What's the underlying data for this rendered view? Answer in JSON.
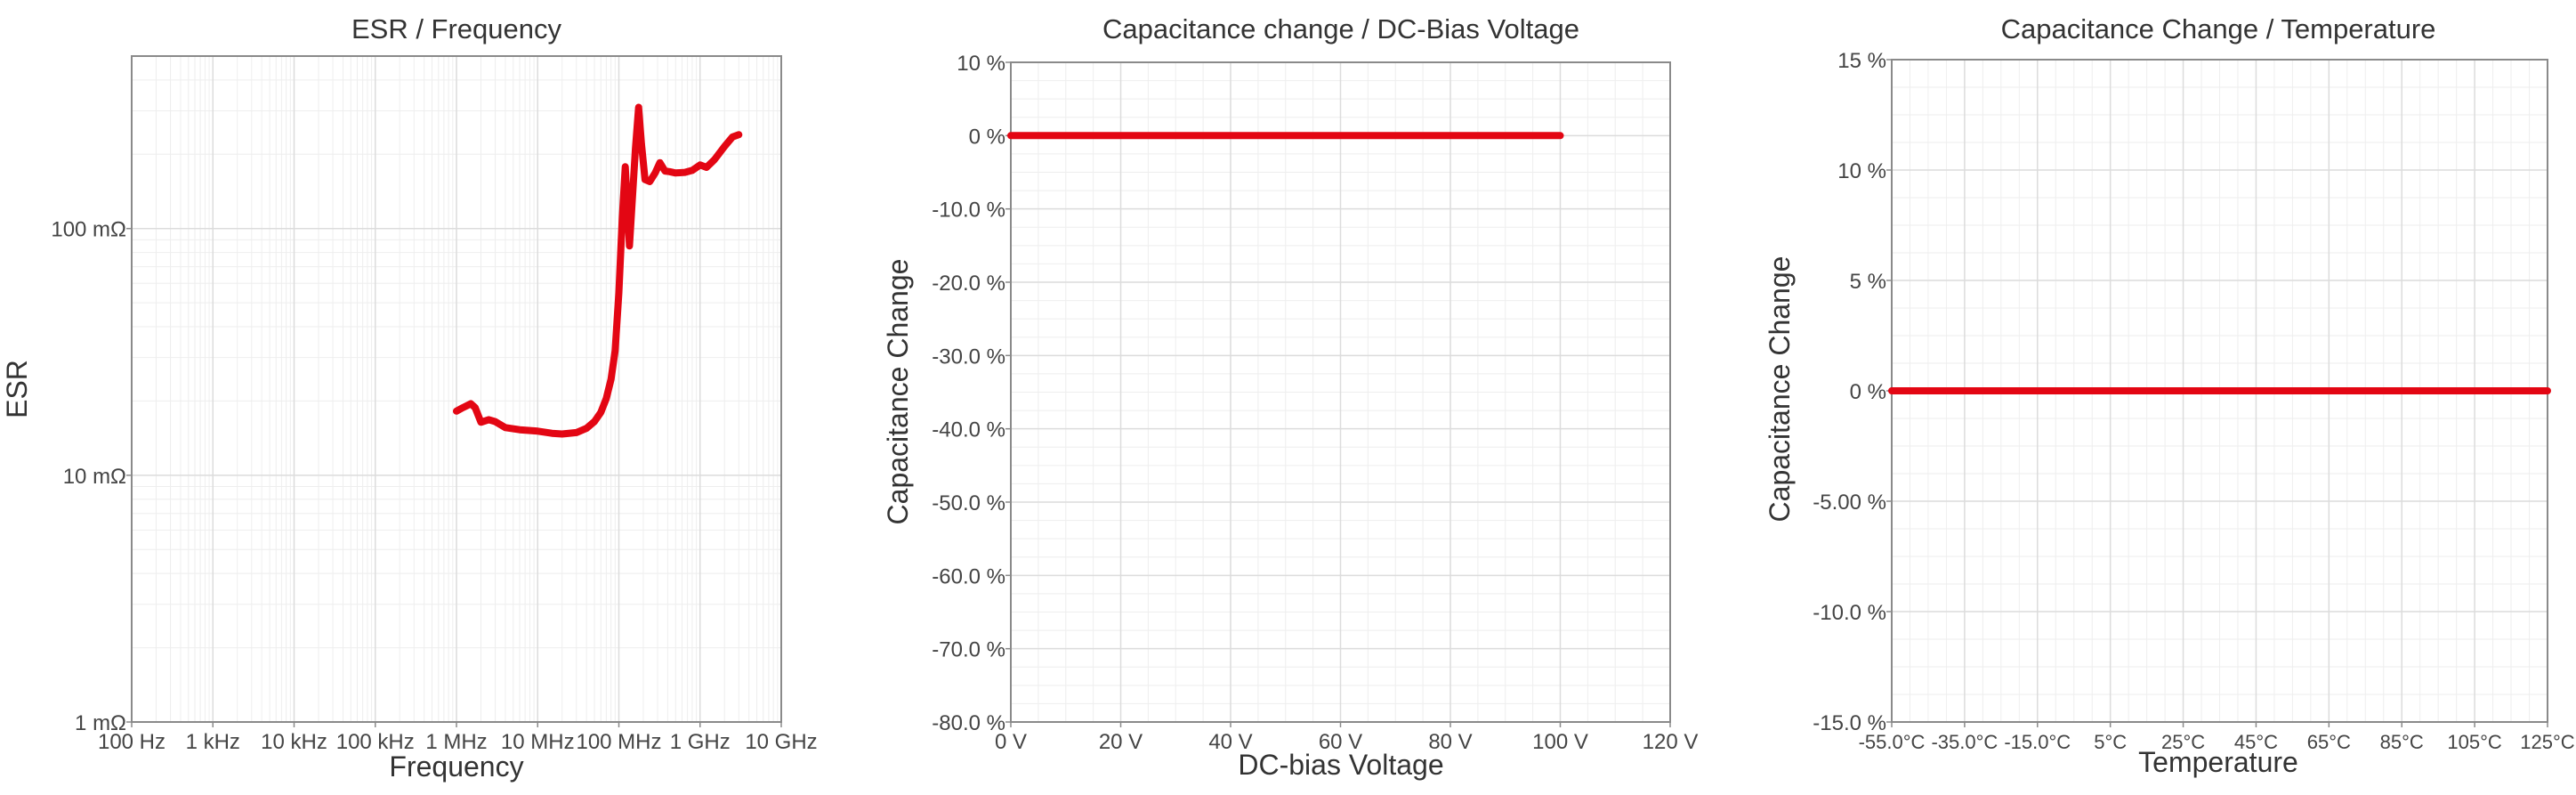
{
  "chart_data": [
    {
      "type": "line",
      "title": "ESR / Frequency",
      "xlabel": "Frequency",
      "ylabel": "ESR",
      "x_scale": "log",
      "y_scale": "log",
      "xlim": [
        100,
        10000000000
      ],
      "ylim": [
        0.001,
        0.5
      ],
      "x_ticks": [
        {
          "value": 100,
          "label": "100 Hz"
        },
        {
          "value": 1000,
          "label": "1 kHz"
        },
        {
          "value": 10000,
          "label": "10 kHz"
        },
        {
          "value": 100000,
          "label": "100 kHz"
        },
        {
          "value": 1000000,
          "label": "1 MHz"
        },
        {
          "value": 10000000,
          "label": "10 MHz"
        },
        {
          "value": 100000000,
          "label": "100 MHz"
        },
        {
          "value": 1000000000,
          "label": "1 GHz"
        },
        {
          "value": 10000000000,
          "label": "10 GHz"
        }
      ],
      "y_ticks": [
        {
          "value": 0.001,
          "label": "1 mΩ"
        },
        {
          "value": 0.01,
          "label": "10 mΩ"
        },
        {
          "value": 0.1,
          "label": "100 mΩ"
        }
      ],
      "grid": true,
      "series": [
        {
          "color": "#e30613",
          "x": [
            1000000,
            1200000,
            1500000,
            1700000,
            2000000,
            2500000,
            3000000,
            4000000,
            6000000,
            10000000,
            15000000,
            20000000,
            30000000,
            40000000,
            50000000,
            60000000,
            70000000,
            80000000,
            90000000,
            100000000,
            110000000,
            120000000,
            135000000,
            160000000,
            175000000,
            190000000,
            210000000,
            240000000,
            280000000,
            320000000,
            370000000,
            420000000,
            500000000,
            650000000,
            800000000,
            1000000000,
            1200000000,
            1500000000,
            2000000000,
            2500000000,
            3000000000
          ],
          "y": [
            0.0182,
            0.0188,
            0.0195,
            0.0188,
            0.0164,
            0.0168,
            0.0165,
            0.0156,
            0.0153,
            0.0151,
            0.0148,
            0.0147,
            0.0149,
            0.0155,
            0.0165,
            0.018,
            0.0205,
            0.0245,
            0.032,
            0.055,
            0.11,
            0.178,
            0.085,
            0.21,
            0.31,
            0.22,
            0.158,
            0.155,
            0.168,
            0.185,
            0.171,
            0.17,
            0.168,
            0.169,
            0.172,
            0.181,
            0.177,
            0.19,
            0.215,
            0.235,
            0.24
          ]
        }
      ]
    },
    {
      "type": "line",
      "title": "Capacitance change / DC-Bias Voltage",
      "xlabel": "DC-bias Voltage",
      "ylabel": "Capacitance Change",
      "xlim": [
        0,
        120
      ],
      "ylim": [
        -80,
        10
      ],
      "x_ticks": [
        {
          "value": 0,
          "label": "0 V"
        },
        {
          "value": 20,
          "label": "20 V"
        },
        {
          "value": 40,
          "label": "40 V"
        },
        {
          "value": 60,
          "label": "60 V"
        },
        {
          "value": 80,
          "label": "80 V"
        },
        {
          "value": 100,
          "label": "100 V"
        },
        {
          "value": 120,
          "label": "120 V"
        }
      ],
      "y_ticks": [
        {
          "value": 10,
          "label": "10 %"
        },
        {
          "value": 0,
          "label": "0 %"
        },
        {
          "value": -10,
          "label": "-10.0 %"
        },
        {
          "value": -20,
          "label": "-20.0 %"
        },
        {
          "value": -30,
          "label": "-30.0 %"
        },
        {
          "value": -40,
          "label": "-40.0 %"
        },
        {
          "value": -50,
          "label": "-50.0 %"
        },
        {
          "value": -60,
          "label": "-60.0 %"
        },
        {
          "value": -70,
          "label": "-70.0 %"
        },
        {
          "value": -80,
          "label": "-80.0 %"
        }
      ],
      "grid": true,
      "series": [
        {
          "color": "#e30613",
          "x": [
            0,
            100
          ],
          "y": [
            0,
            0
          ]
        }
      ]
    },
    {
      "type": "line",
      "title": "Capacitance Change / Temperature",
      "xlabel": "Temperature",
      "ylabel": "Capacitance Change",
      "xlim": [
        -55,
        125
      ],
      "ylim": [
        -15,
        15
      ],
      "x_ticks": [
        {
          "value": -55,
          "label": "-55.0°C"
        },
        {
          "value": -35,
          "label": "-35.0°C"
        },
        {
          "value": -15,
          "label": "-15.0°C"
        },
        {
          "value": 5,
          "label": "5°C"
        },
        {
          "value": 25,
          "label": "25°C"
        },
        {
          "value": 45,
          "label": "45°C"
        },
        {
          "value": 65,
          "label": "65°C"
        },
        {
          "value": 85,
          "label": "85°C"
        },
        {
          "value": 105,
          "label": "105°C"
        },
        {
          "value": 125,
          "label": "125°C"
        }
      ],
      "y_ticks": [
        {
          "value": 15,
          "label": "15 %"
        },
        {
          "value": 10,
          "label": "10 %"
        },
        {
          "value": 5,
          "label": "5 %"
        },
        {
          "value": 0,
          "label": "0 %"
        },
        {
          "value": -5,
          "label": "-5.00 %"
        },
        {
          "value": -10,
          "label": "-10.0 %"
        },
        {
          "value": -15,
          "label": "-15.0 %"
        }
      ],
      "grid": true,
      "series": [
        {
          "color": "#e30613",
          "x": [
            -55,
            125
          ],
          "y": [
            0,
            0
          ]
        }
      ]
    }
  ]
}
